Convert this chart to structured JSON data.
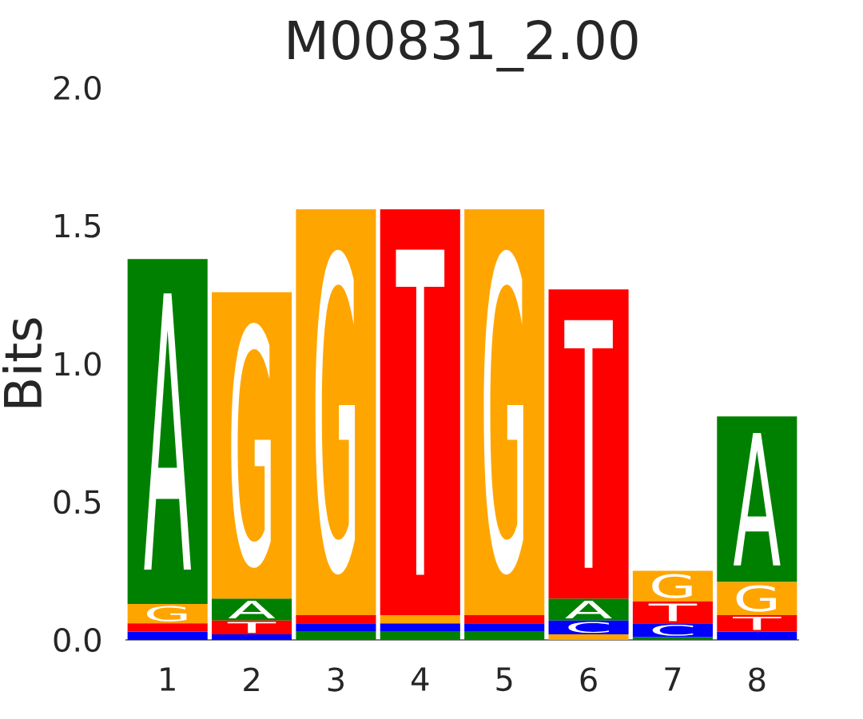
{
  "chart_data": {
    "type": "bar",
    "title": "M00831_2.00",
    "ylabel": "Bits",
    "categories": [
      "1",
      "2",
      "3",
      "4",
      "5",
      "6",
      "7",
      "8"
    ],
    "series": [
      {
        "name": "A",
        "color": "#008000",
        "values": [
          1.25,
          0.08,
          0.03,
          0.03,
          0.03,
          0.08,
          0.01,
          0.6
        ],
        "base": [
          0.13,
          0.07,
          0,
          0,
          0,
          0.07,
          0,
          0.21
        ]
      },
      {
        "name": "C",
        "color": "#0000ff",
        "values": [
          0.03,
          0.02,
          0.03,
          0.03,
          0.03,
          0.05,
          0.05,
          0.03
        ],
        "base": [
          0,
          0,
          0.03,
          0.03,
          0.03,
          0.02,
          0.01,
          0
        ]
      },
      {
        "name": "G",
        "color": "#ffa500",
        "values": [
          0.07,
          1.11,
          1.47,
          0.03,
          1.47,
          0.02,
          0.11,
          0.12
        ],
        "base": [
          0.06,
          0.15,
          0.09,
          0.06,
          0.09,
          0,
          0.14,
          0.09
        ]
      },
      {
        "name": "T",
        "color": "#ff0000",
        "values": [
          0.03,
          0.05,
          0.03,
          1.47,
          0.03,
          1.12,
          0.08,
          0.06
        ],
        "base": [
          0.03,
          0.02,
          0.06,
          0.09,
          0.06,
          0.15,
          0.06,
          0.03
        ]
      }
    ],
    "ylim": [
      0,
      2
    ],
    "yticks": [
      {
        "value": 0,
        "label": "0.0"
      },
      0.5,
      {
        "value": 1,
        "label": "1.0"
      },
      1.5,
      {
        "value": 2,
        "label": "2.0"
      }
    ]
  }
}
